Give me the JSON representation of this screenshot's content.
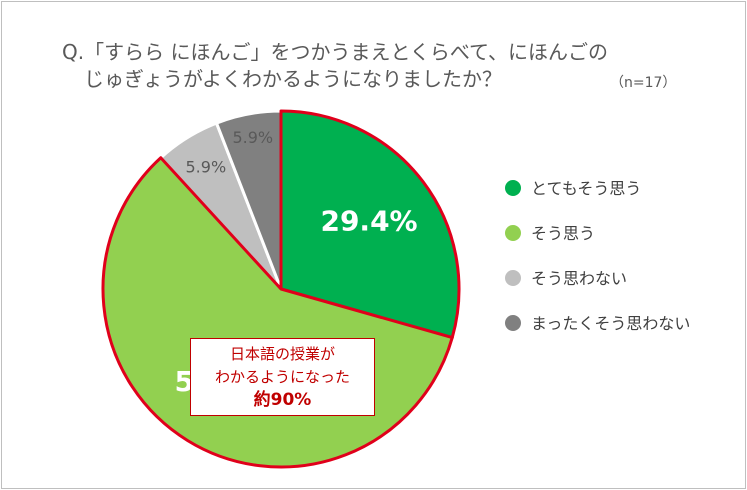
{
  "title_line1": "Q.「すらら にほんご」をつかうまえとくらべて、にほんごの",
  "title_line2": "じゅぎょうがよくわかるようになりましたか？",
  "sample_size": "（n=17）",
  "callout": {
    "line1": "日本語の授業が",
    "line2": "わかるようになった",
    "line3": "約90%"
  },
  "chart_data": {
    "type": "pie",
    "categories": [
      "とてもそう思う",
      "そう思う",
      "そう思わない",
      "まったくそう思わない"
    ],
    "values": [
      29.4,
      58.8,
      5.9,
      5.9
    ],
    "labels": [
      "29.4%",
      "58.8%",
      "5.9%",
      "5.9%"
    ],
    "colors": [
      "#00b050",
      "#92d050",
      "#bfbfbf",
      "#808080"
    ],
    "highlight_color": "#e0001b",
    "legend_position": "right"
  }
}
